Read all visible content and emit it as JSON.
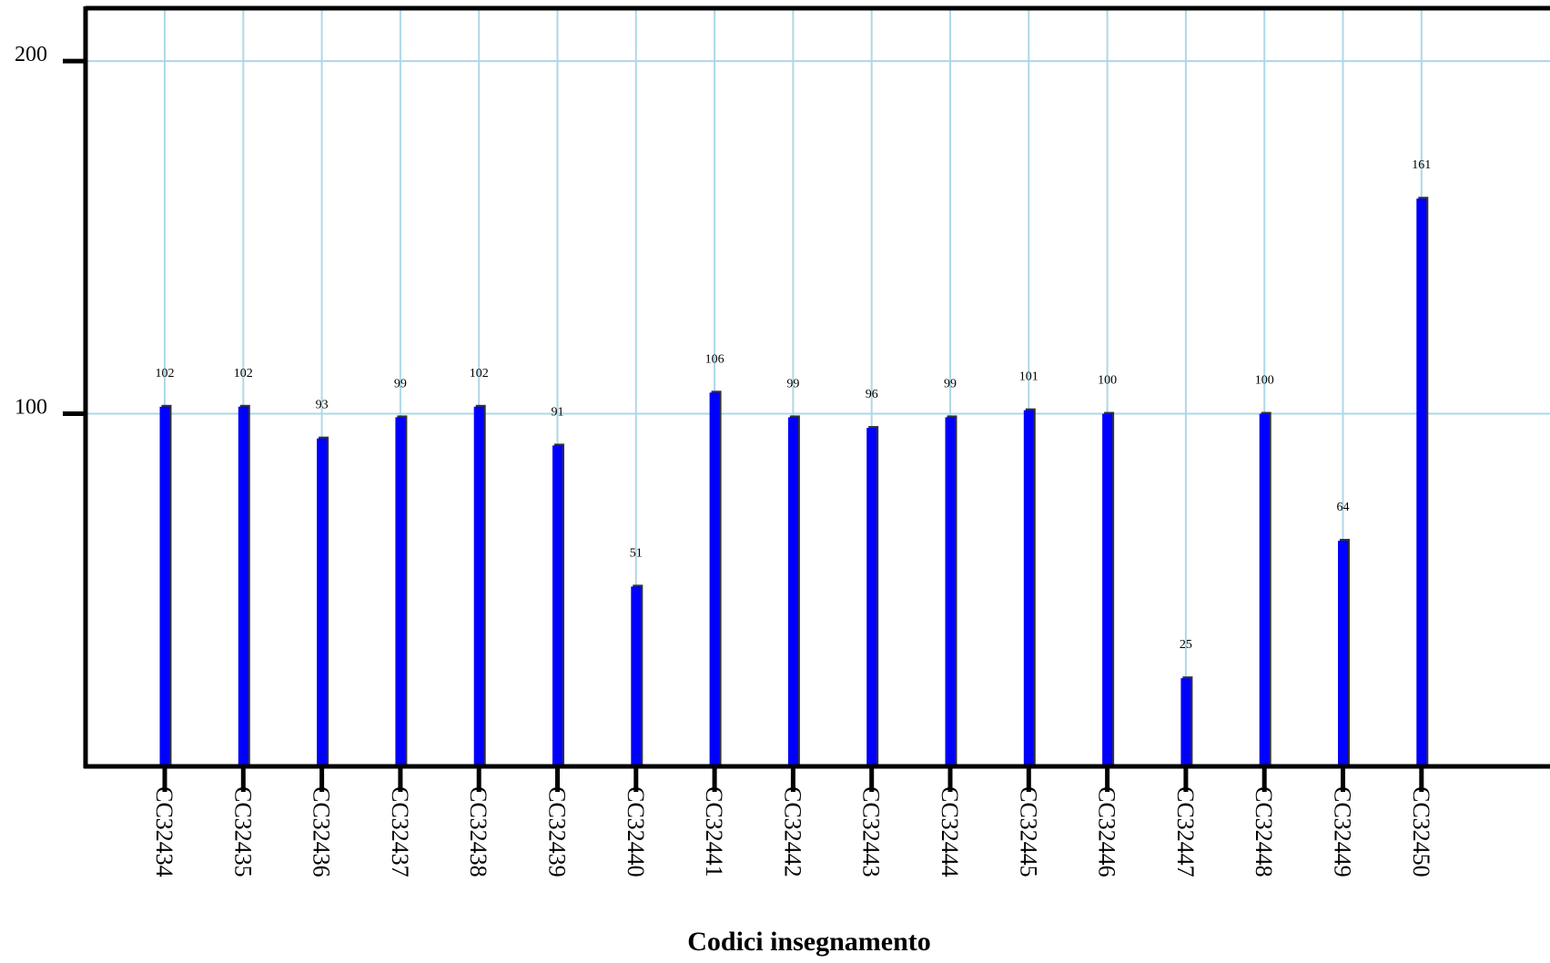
{
  "chart_data": {
    "type": "bar",
    "title": "",
    "xlabel": "Codici insegnamento",
    "ylabel": "",
    "ylim": [
      0,
      215
    ],
    "yticks": [
      100,
      200
    ],
    "grid": true,
    "categories": [
      "CC32434",
      "CC32435",
      "CC32436",
      "CC32437",
      "CC32438",
      "CC32439",
      "CC32440",
      "CC32441",
      "CC32442",
      "CC32443",
      "CC32444",
      "CC32445",
      "CC32446",
      "CC32447",
      "CC32448",
      "CC32449",
      "CC32450"
    ],
    "values": [
      102,
      102,
      93,
      99,
      102,
      91,
      51,
      106,
      99,
      96,
      99,
      101,
      100,
      25,
      100,
      64,
      161
    ],
    "data_labels": [
      "102",
      "102",
      "93",
      "99",
      "102",
      "91",
      "51",
      "106",
      "99",
      "96",
      "99",
      "101",
      "100",
      "25",
      "100",
      "64",
      "161"
    ]
  },
  "colors": {
    "bar": "#0000ff",
    "bar_shadow": "#333333",
    "grid": "#add8e6",
    "axis": "#000000",
    "background": "#ffffff"
  }
}
